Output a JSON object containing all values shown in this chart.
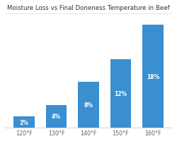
{
  "title": "Moisture Loss vs Final Doneness Temperature in Beef",
  "categories": [
    "120°F",
    "130°F",
    "140°F",
    "150°F",
    "160°F"
  ],
  "values": [
    2,
    4,
    8,
    12,
    18
  ],
  "labels": [
    "2%",
    "4%",
    "8%",
    "12%",
    "18%"
  ],
  "bar_color": "#3a8fd1",
  "background_color": "#ffffff",
  "title_fontsize": 6.2,
  "label_fontsize": 5.5,
  "tick_fontsize": 5.8,
  "ylim": [
    0,
    20
  ],
  "bar_width": 0.65
}
